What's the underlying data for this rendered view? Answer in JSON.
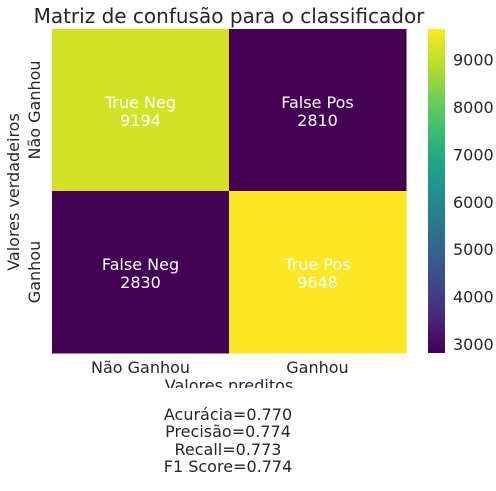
{
  "chart_data": {
    "type": "heatmap",
    "title": "Matriz de confusão para o classificador",
    "xlabel": "Valores preditos",
    "ylabel": "Valores verdadeiros",
    "x_categories": [
      "Não Ganhou",
      "Ganhou"
    ],
    "y_categories": [
      "Não Ganhou",
      "Ganhou"
    ],
    "cells": [
      [
        {
          "name": "True Neg",
          "value": 9194,
          "value_label": "9194"
        },
        {
          "name": "False Pos",
          "value": 2810,
          "value_label": "2810"
        }
      ],
      [
        {
          "name": "False Neg",
          "value": 2830,
          "value_label": "2830"
        },
        {
          "name": "True Pos",
          "value": 9648,
          "value_label": "9648"
        }
      ]
    ],
    "colormap": "viridis",
    "colorbar": {
      "min": 2810,
      "max": 9648,
      "ticks": [
        3000,
        4000,
        5000,
        6000,
        7000,
        8000,
        9000
      ],
      "tick_labels": [
        "3000",
        "4000",
        "5000",
        "6000",
        "7000",
        "8000",
        "9000"
      ]
    },
    "grid": false
  },
  "metrics": {
    "accuracy": "Acurácia=0.770",
    "precision": "Precisão=0.774",
    "recall": "Recall=0.773",
    "f1": "F1 Score=0.774"
  }
}
